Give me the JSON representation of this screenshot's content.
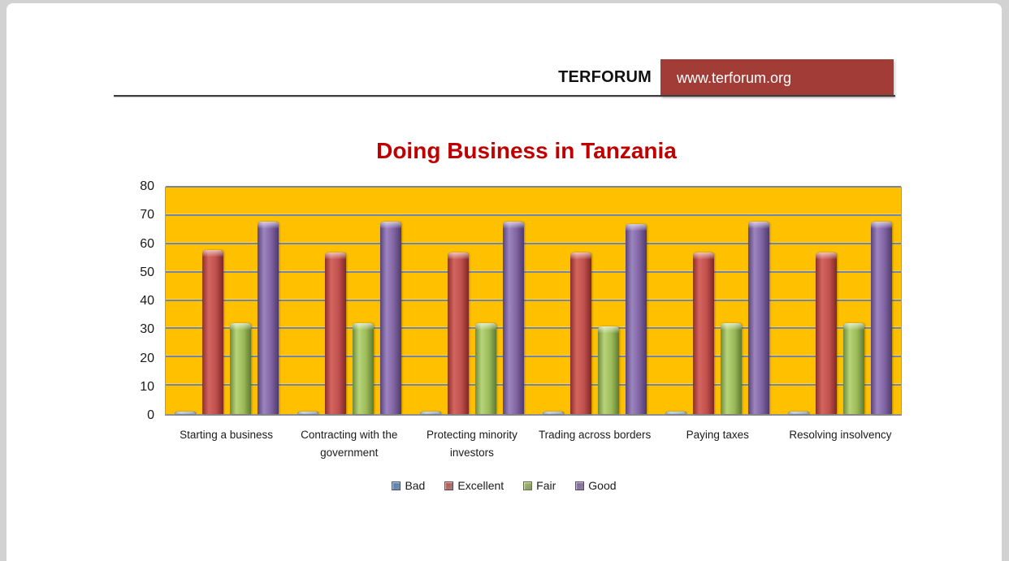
{
  "page": {
    "header": {
      "brand": "TERFORUM",
      "url": "www.terforum.org",
      "box_color": "#A23C37"
    },
    "title": {
      "text": "Doing Business in Tanzania",
      "color": "#C00000"
    }
  },
  "chart_data": {
    "type": "bar",
    "title": "Doing Business in Tanzania",
    "categories": [
      "Starting a business",
      "Contracting with the government",
      "Protecting minority investors",
      "Trading across borders",
      "Paying taxes",
      "Resolving insolvency"
    ],
    "series": [
      {
        "name": "Bad",
        "color": "#4F81BD",
        "values": [
          1,
          1,
          1,
          1,
          1,
          1
        ]
      },
      {
        "name": "Excellent",
        "color": "#C0504D",
        "values": [
          58,
          57,
          57,
          57,
          57,
          57
        ]
      },
      {
        "name": "Fair",
        "color": "#9BBB59",
        "values": [
          32,
          32,
          32,
          31,
          32,
          32
        ]
      },
      {
        "name": "Good",
        "color": "#8064A2",
        "values": [
          68,
          68,
          68,
          67,
          68,
          68
        ]
      }
    ],
    "ylim": [
      0,
      80
    ],
    "yticks": [
      0,
      10,
      20,
      30,
      40,
      50,
      60,
      70,
      80
    ],
    "plot_background": "#FFC000",
    "gridline_color": "#7786A0",
    "gridlines": true,
    "legend_position": "bottom"
  }
}
